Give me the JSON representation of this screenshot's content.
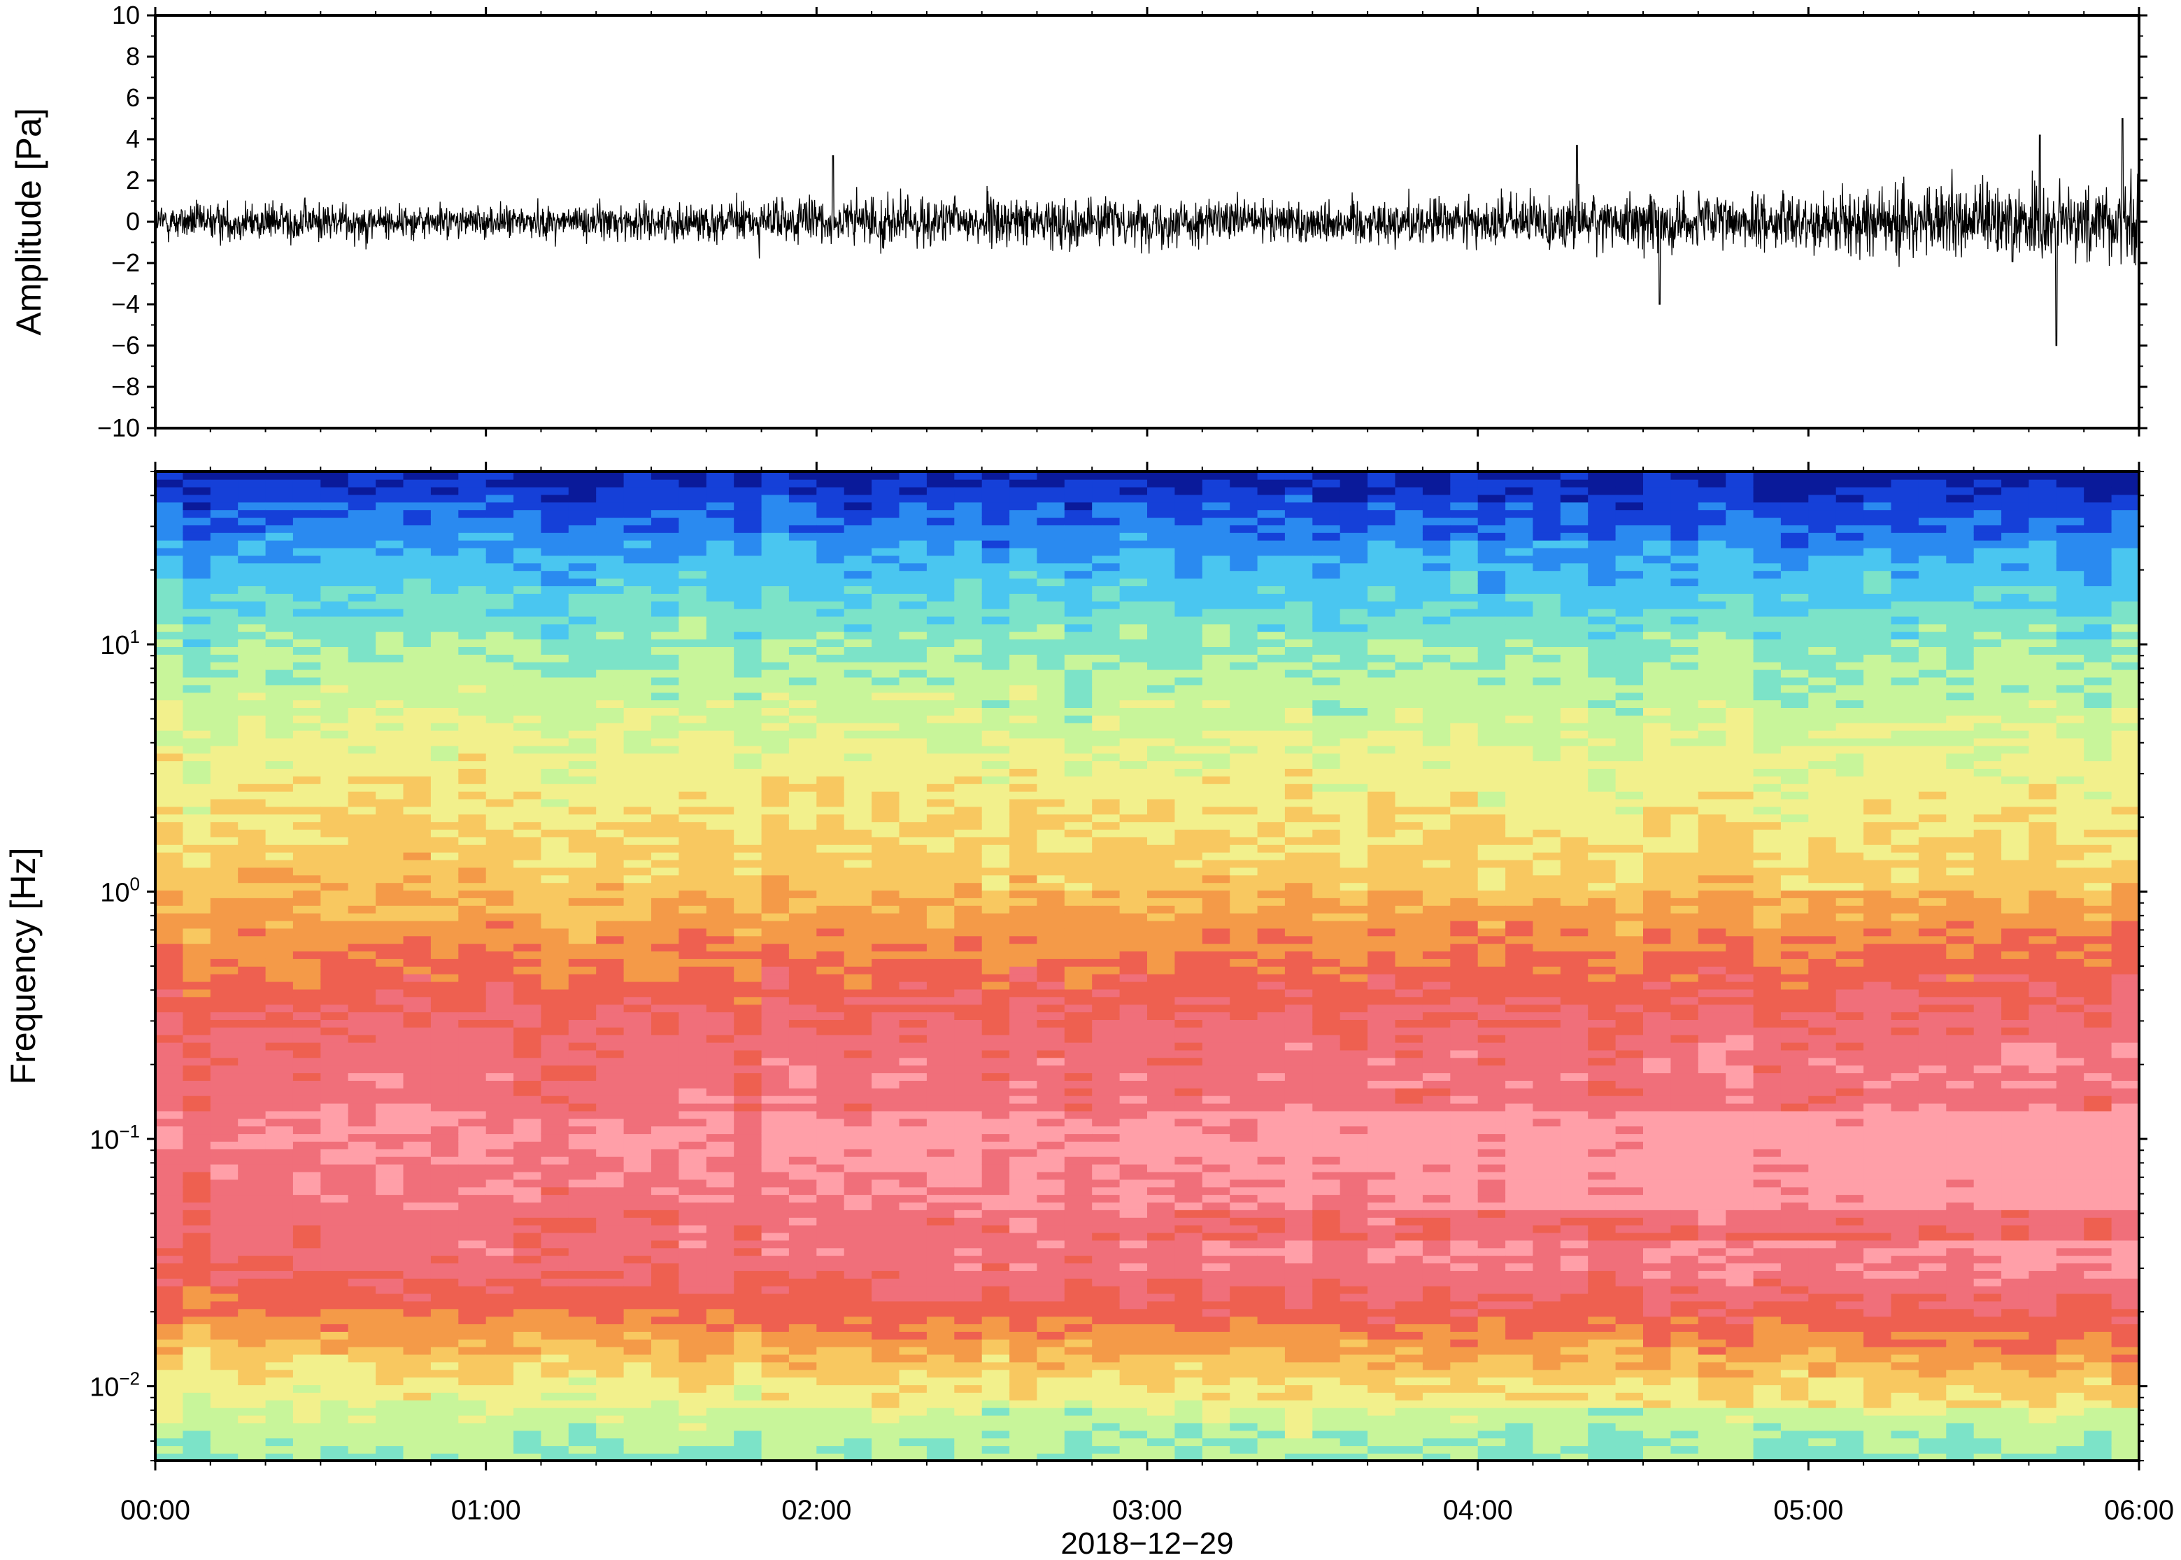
{
  "figure": {
    "date_label": "2018−12−29"
  },
  "chart_data": [
    {
      "type": "line",
      "ylabel": "Amplitude [Pa]",
      "xlabel": "",
      "ylim": [
        -10,
        10
      ],
      "y_ticks": [
        -10,
        -8,
        -6,
        -4,
        -2,
        0,
        2,
        4,
        6,
        8,
        10
      ],
      "y_tick_labels": [
        "−10",
        "−8",
        "−6",
        "−4",
        "−2",
        "0",
        "2",
        "4",
        "6",
        "8",
        "10"
      ],
      "x_range_hours": [
        0,
        6
      ],
      "grid": false,
      "series": [
        {
          "color": "#000000",
          "envelope_hours": [
            0,
            0.5,
            1.0,
            1.5,
            2.0,
            2.5,
            3.0,
            3.5,
            4.0,
            4.5,
            5.0,
            5.5,
            6.0
          ],
          "envelope_amplitude": [
            0.8,
            0.9,
            0.7,
            0.8,
            1.1,
            1.1,
            1.0,
            1.0,
            1.1,
            1.3,
            1.2,
            1.7,
            2.0
          ],
          "peaks": [
            {
              "hour": 2.05,
              "value": 3.2
            },
            {
              "hour": 4.3,
              "value": 3.7
            },
            {
              "hour": 4.55,
              "value": -4.0
            },
            {
              "hour": 5.7,
              "value": 4.2
            },
            {
              "hour": 5.75,
              "value": -6.0
            },
            {
              "hour": 5.95,
              "value": 5.0
            }
          ]
        }
      ]
    },
    {
      "type": "heatmap",
      "ylabel": "Frequency [Hz]",
      "xlabel": "",
      "y_scale": "log",
      "ylim": [
        0.005,
        50
      ],
      "y_tick_labels": [
        {
          "value": 0.01,
          "base": "10",
          "exp": "−2"
        },
        {
          "value": 0.1,
          "base": "10",
          "exp": "−1"
        },
        {
          "value": 1,
          "base": "10",
          "exp": "0"
        },
        {
          "value": 10,
          "base": "10",
          "exp": "1"
        }
      ],
      "x_ticks_hours": [
        0,
        1,
        2,
        3,
        4,
        5,
        6
      ],
      "x_tick_labels": [
        "00:00",
        "01:00",
        "02:00",
        "03:00",
        "04:00",
        "05:00",
        "06:00"
      ],
      "colormap": [
        "#0a1a9a",
        "#1540d8",
        "#2a8af0",
        "#4ac6f0",
        "#7ce3c8",
        "#c8f59a",
        "#f2f08c",
        "#f8c860",
        "#f49a48",
        "#ee6050",
        "#f06f7a",
        "#ff9fa8"
      ],
      "level_profile": {
        "log10_freq": [
          -2.3,
          -2.0,
          -1.7,
          -1.5,
          -1.0,
          -0.5,
          0.0,
          0.5,
          1.0,
          1.3,
          1.7
        ],
        "level": [
          0.4,
          0.52,
          0.74,
          0.84,
          0.9,
          0.82,
          0.63,
          0.53,
          0.4,
          0.28,
          0.05
        ]
      }
    }
  ]
}
